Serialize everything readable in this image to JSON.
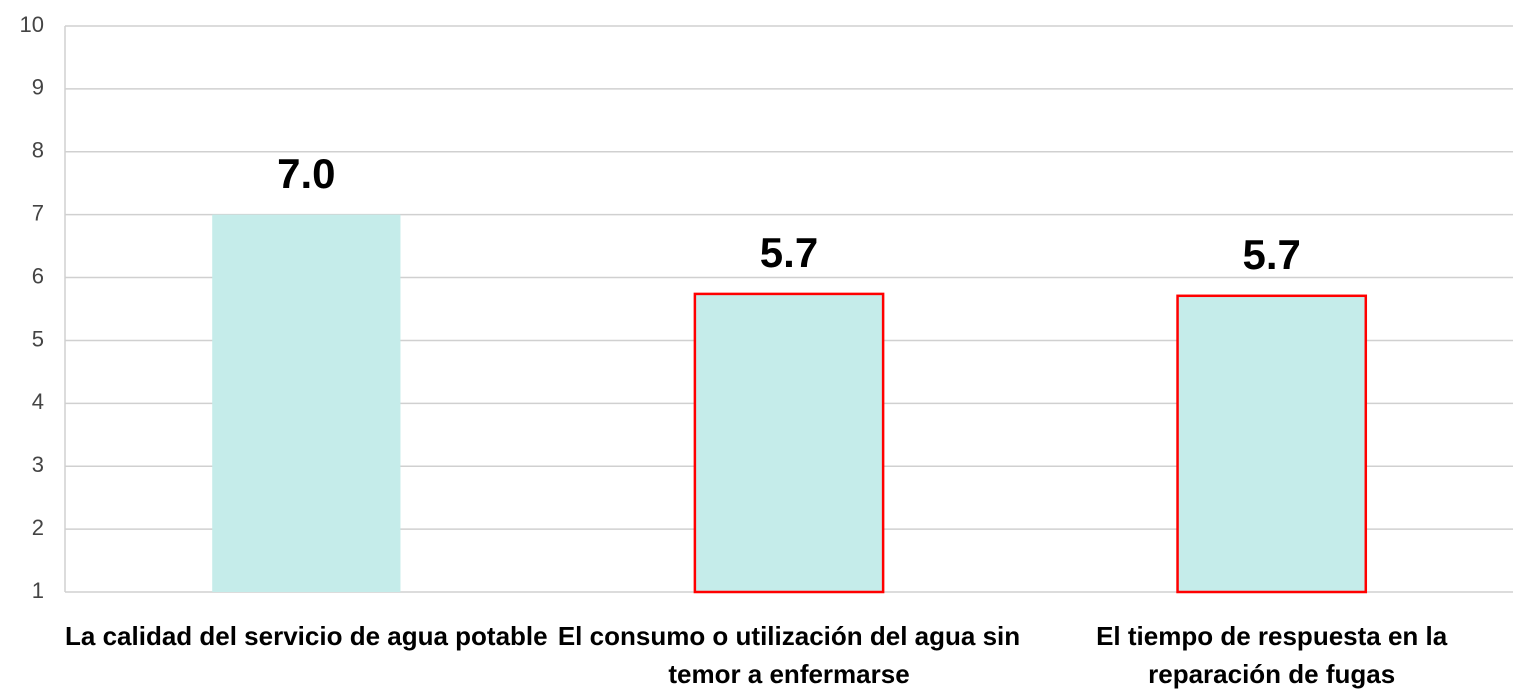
{
  "chart_data": {
    "type": "bar",
    "categories": [
      "La calidad del servicio de agua potable",
      "El consumo o utilización del agua sin temor a enfermarse",
      "El tiempo de respuesta en la reparación de fugas"
    ],
    "values": [
      7.0,
      5.74,
      5.71
    ],
    "value_labels": [
      "7.0",
      "5.7",
      "5.7"
    ],
    "color": "#c5ecea",
    "edge_colors": [
      null,
      "#ff0000",
      "#ff0000"
    ],
    "ylim": [
      1,
      10
    ],
    "yticks": [
      1,
      2,
      3,
      4,
      5,
      6,
      7,
      8,
      9,
      10
    ],
    "grid": true
  }
}
